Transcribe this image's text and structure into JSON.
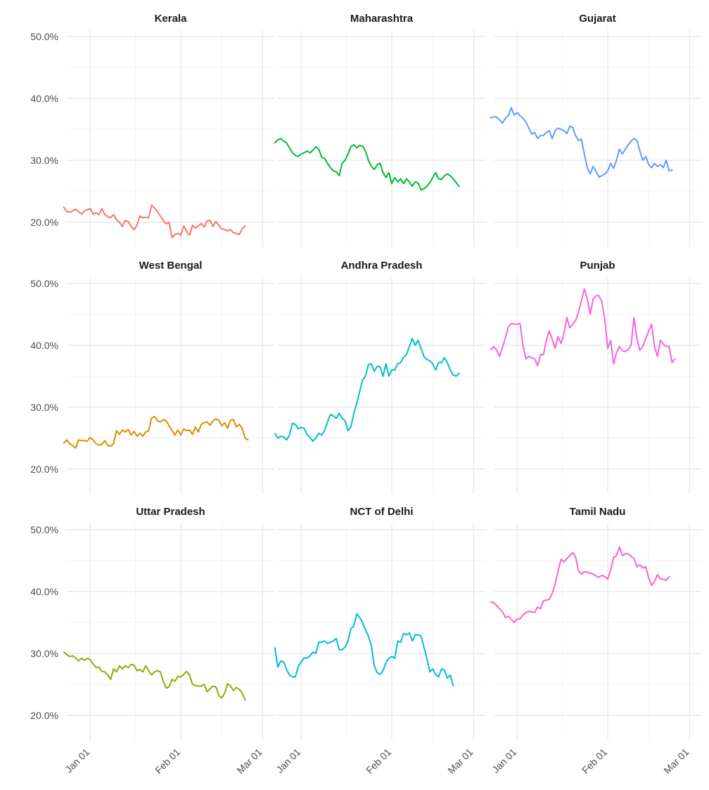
{
  "chart_data": {
    "type": "line",
    "layout": "facet_wrap 3x3",
    "y_format": "percent, 1 decimal",
    "ylim": [
      0.16,
      0.51
    ],
    "yticks": [
      0.2,
      0.3,
      0.4,
      0.5
    ],
    "ytick_labels": [
      "20.0%",
      "30.0%",
      "40.0%",
      "50.0%"
    ],
    "xlim": [
      "2020-12-24",
      "2021-03-05"
    ],
    "xticks": [
      "2021-01-01",
      "2021-02-01",
      "2021-03-01"
    ],
    "xtick_labels": [
      "Jan 01",
      "Feb 01",
      "Mar 01"
    ],
    "x_start": "2020-12-23",
    "x_step_days": 1,
    "grid": true,
    "legend": "none",
    "facets": [
      {
        "name": "Kerala",
        "color": "#F8766D",
        "values": [
          0.224,
          0.217,
          0.216,
          0.218,
          0.221,
          0.217,
          0.213,
          0.218,
          0.22,
          0.222,
          0.213,
          0.215,
          0.212,
          0.222,
          0.212,
          0.209,
          0.207,
          0.212,
          0.204,
          0.2,
          0.193,
          0.203,
          0.201,
          0.193,
          0.188,
          0.195,
          0.21,
          0.207,
          0.208,
          0.207,
          0.227,
          0.223,
          0.217,
          0.21,
          0.203,
          0.197,
          0.2,
          0.175,
          0.18,
          0.182,
          0.179,
          0.194,
          0.185,
          0.179,
          0.195,
          0.19,
          0.194,
          0.198,
          0.192,
          0.202,
          0.203,
          0.193,
          0.201,
          0.195,
          0.189,
          0.188,
          0.186,
          0.188,
          0.183,
          0.182,
          0.18,
          0.189,
          0.194
        ]
      },
      {
        "name": "Maharashtra",
        "color": "#00BA38",
        "values": [
          0.328,
          0.333,
          0.335,
          0.331,
          0.328,
          0.32,
          0.312,
          0.308,
          0.306,
          0.31,
          0.312,
          0.315,
          0.312,
          0.316,
          0.322,
          0.318,
          0.305,
          0.303,
          0.295,
          0.288,
          0.283,
          0.281,
          0.275,
          0.295,
          0.3,
          0.31,
          0.322,
          0.325,
          0.32,
          0.324,
          0.323,
          0.315,
          0.3,
          0.29,
          0.285,
          0.293,
          0.295,
          0.28,
          0.272,
          0.28,
          0.262,
          0.272,
          0.265,
          0.27,
          0.262,
          0.27,
          0.265,
          0.258,
          0.265,
          0.263,
          0.252,
          0.254,
          0.258,
          0.264,
          0.272,
          0.28,
          0.27,
          0.269,
          0.275,
          0.278,
          0.275,
          0.27,
          0.264,
          0.258
        ]
      },
      {
        "name": "Gujarat",
        "color": "#619CFF",
        "values": [
          0.369,
          0.37,
          0.37,
          0.365,
          0.36,
          0.368,
          0.372,
          0.385,
          0.373,
          0.377,
          0.372,
          0.368,
          0.362,
          0.352,
          0.342,
          0.345,
          0.335,
          0.34,
          0.34,
          0.345,
          0.348,
          0.335,
          0.348,
          0.352,
          0.35,
          0.348,
          0.343,
          0.355,
          0.353,
          0.34,
          0.332,
          0.334,
          0.31,
          0.288,
          0.278,
          0.29,
          0.282,
          0.273,
          0.275,
          0.278,
          0.283,
          0.295,
          0.287,
          0.3,
          0.318,
          0.31,
          0.318,
          0.325,
          0.331,
          0.335,
          0.332,
          0.315,
          0.3,
          0.306,
          0.293,
          0.288,
          0.295,
          0.29,
          0.293,
          0.288,
          0.3,
          0.283,
          0.284
        ]
      },
      {
        "name": "West Bengal",
        "color": "#DB8E00",
        "values": [
          0.242,
          0.247,
          0.241,
          0.238,
          0.234,
          0.247,
          0.246,
          0.246,
          0.245,
          0.251,
          0.247,
          0.241,
          0.239,
          0.24,
          0.246,
          0.238,
          0.237,
          0.241,
          0.262,
          0.256,
          0.263,
          0.26,
          0.264,
          0.255,
          0.261,
          0.253,
          0.258,
          0.253,
          0.26,
          0.262,
          0.282,
          0.285,
          0.278,
          0.276,
          0.28,
          0.278,
          0.27,
          0.262,
          0.255,
          0.263,
          0.255,
          0.265,
          0.262,
          0.263,
          0.256,
          0.268,
          0.26,
          0.272,
          0.275,
          0.276,
          0.271,
          0.278,
          0.281,
          0.279,
          0.27,
          0.275,
          0.266,
          0.279,
          0.28,
          0.268,
          0.272,
          0.266,
          0.25,
          0.247
        ]
      },
      {
        "name": "Andhra Pradesh",
        "color": "#00BFC4",
        "values": [
          0.257,
          0.25,
          0.253,
          0.252,
          0.247,
          0.255,
          0.274,
          0.272,
          0.265,
          0.267,
          0.266,
          0.256,
          0.251,
          0.245,
          0.25,
          0.258,
          0.255,
          0.262,
          0.276,
          0.288,
          0.286,
          0.282,
          0.29,
          0.282,
          0.278,
          0.262,
          0.268,
          0.29,
          0.306,
          0.325,
          0.344,
          0.35,
          0.369,
          0.37,
          0.358,
          0.366,
          0.365,
          0.35,
          0.37,
          0.35,
          0.36,
          0.36,
          0.37,
          0.372,
          0.38,
          0.385,
          0.398,
          0.411,
          0.4,
          0.408,
          0.395,
          0.382,
          0.377,
          0.375,
          0.37,
          0.36,
          0.372,
          0.372,
          0.38,
          0.372,
          0.36,
          0.352,
          0.35,
          0.355
        ]
      },
      {
        "name": "Punjab",
        "color": "#F564E3",
        "values": [
          0.393,
          0.398,
          0.392,
          0.382,
          0.397,
          0.412,
          0.43,
          0.435,
          0.434,
          0.434,
          0.435,
          0.4,
          0.378,
          0.382,
          0.38,
          0.378,
          0.367,
          0.385,
          0.385,
          0.408,
          0.423,
          0.41,
          0.395,
          0.414,
          0.403,
          0.418,
          0.445,
          0.428,
          0.434,
          0.44,
          0.453,
          0.472,
          0.491,
          0.475,
          0.45,
          0.475,
          0.48,
          0.48,
          0.47,
          0.441,
          0.395,
          0.408,
          0.37,
          0.388,
          0.398,
          0.391,
          0.39,
          0.393,
          0.4,
          0.445,
          0.41,
          0.392,
          0.398,
          0.411,
          0.423,
          0.434,
          0.398,
          0.382,
          0.408,
          0.402,
          0.398,
          0.398,
          0.372,
          0.378
        ]
      },
      {
        "name": "Uttar Pradesh",
        "color": "#93AA00",
        "values": [
          0.302,
          0.298,
          0.295,
          0.296,
          0.293,
          0.288,
          0.292,
          0.289,
          0.292,
          0.29,
          0.283,
          0.277,
          0.278,
          0.271,
          0.27,
          0.265,
          0.258,
          0.275,
          0.27,
          0.28,
          0.275,
          0.28,
          0.277,
          0.282,
          0.281,
          0.272,
          0.274,
          0.27,
          0.28,
          0.272,
          0.265,
          0.27,
          0.272,
          0.27,
          0.255,
          0.244,
          0.246,
          0.258,
          0.255,
          0.263,
          0.262,
          0.266,
          0.271,
          0.265,
          0.25,
          0.248,
          0.247,
          0.247,
          0.25,
          0.238,
          0.243,
          0.247,
          0.246,
          0.232,
          0.228,
          0.236,
          0.251,
          0.247,
          0.24,
          0.245,
          0.242,
          0.236,
          0.225
        ]
      },
      {
        "name": "NCT of Delhi",
        "color": "#00B9E3",
        "values": [
          0.309,
          0.278,
          0.288,
          0.286,
          0.274,
          0.265,
          0.262,
          0.262,
          0.279,
          0.286,
          0.293,
          0.292,
          0.296,
          0.302,
          0.3,
          0.318,
          0.318,
          0.32,
          0.316,
          0.318,
          0.32,
          0.324,
          0.306,
          0.306,
          0.31,
          0.32,
          0.34,
          0.344,
          0.364,
          0.358,
          0.35,
          0.338,
          0.328,
          0.312,
          0.28,
          0.269,
          0.266,
          0.272,
          0.285,
          0.292,
          0.295,
          0.292,
          0.32,
          0.318,
          0.332,
          0.33,
          0.333,
          0.32,
          0.33,
          0.33,
          0.328,
          0.31,
          0.292,
          0.27,
          0.275,
          0.266,
          0.262,
          0.275,
          0.273,
          0.26,
          0.265,
          0.248
        ]
      },
      {
        "name": "Tamil Nadu",
        "color": "#FF61C3",
        "values": [
          0.383,
          0.382,
          0.377,
          0.372,
          0.367,
          0.358,
          0.36,
          0.355,
          0.35,
          0.355,
          0.356,
          0.362,
          0.366,
          0.368,
          0.367,
          0.366,
          0.375,
          0.372,
          0.385,
          0.386,
          0.387,
          0.397,
          0.412,
          0.433,
          0.452,
          0.448,
          0.453,
          0.458,
          0.463,
          0.456,
          0.433,
          0.428,
          0.432,
          0.431,
          0.43,
          0.428,
          0.425,
          0.423,
          0.426,
          0.424,
          0.42,
          0.435,
          0.455,
          0.458,
          0.472,
          0.458,
          0.461,
          0.461,
          0.457,
          0.453,
          0.44,
          0.443,
          0.438,
          0.44,
          0.422,
          0.41,
          0.416,
          0.427,
          0.42,
          0.42,
          0.418,
          0.424
        ]
      }
    ]
  }
}
